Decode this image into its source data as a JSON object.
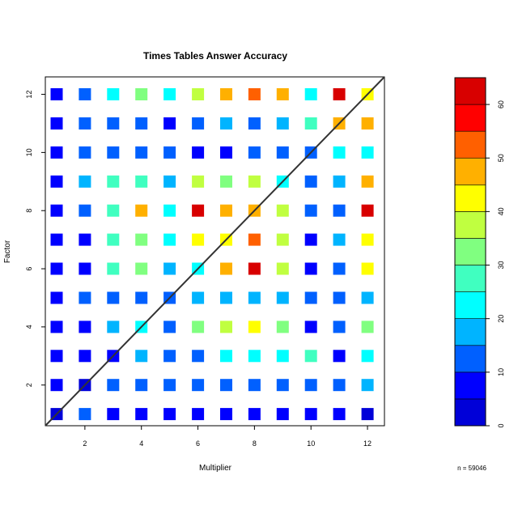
{
  "chart_data": {
    "type": "heatmap",
    "title": "Times Tables Answer Accuracy",
    "xlabel": "Multiplier",
    "ylabel": "Factor",
    "x": [
      1,
      2,
      3,
      4,
      5,
      6,
      7,
      8,
      9,
      10,
      11,
      12
    ],
    "y": [
      1,
      2,
      3,
      4,
      5,
      6,
      7,
      8,
      9,
      10,
      11,
      12
    ],
    "xlim": [
      0.6,
      12.6
    ],
    "ylim": [
      0.6,
      12.6
    ],
    "x_ticks": [
      2,
      4,
      6,
      8,
      10,
      12
    ],
    "y_ticks": [
      2,
      4,
      6,
      8,
      10,
      12
    ],
    "diagonal_line": true,
    "values_by_row_factor": [
      [
        3,
        12,
        5,
        5,
        5,
        5,
        5,
        5,
        5,
        5,
        5,
        3
      ],
      [
        5,
        2,
        11,
        11,
        11,
        11,
        11,
        11,
        11,
        11,
        11,
        16
      ],
      [
        5,
        5,
        5,
        16,
        11,
        11,
        21,
        21,
        21,
        27,
        5,
        21
      ],
      [
        5,
        5,
        16,
        21,
        11,
        32,
        37,
        44,
        32,
        5,
        11,
        32
      ],
      [
        5,
        11,
        11,
        11,
        11,
        16,
        16,
        16,
        16,
        11,
        11,
        16
      ],
      [
        5,
        5,
        27,
        32,
        16,
        21,
        48,
        62,
        37,
        5,
        11,
        42
      ],
      [
        5,
        5,
        27,
        32,
        21,
        42,
        42,
        53,
        37,
        5,
        16,
        42
      ],
      [
        5,
        11,
        27,
        48,
        21,
        62,
        48,
        48,
        37,
        11,
        11,
        65
      ],
      [
        5,
        16,
        27,
        27,
        16,
        37,
        32,
        37,
        21,
        11,
        16,
        48
      ],
      [
        5,
        11,
        11,
        11,
        11,
        5,
        5,
        11,
        11,
        11,
        21,
        21
      ],
      [
        5,
        11,
        11,
        11,
        5,
        11,
        16,
        11,
        16,
        27,
        48,
        48
      ],
      [
        5,
        11,
        21,
        32,
        21,
        37,
        48,
        53,
        48,
        21,
        62,
        42
      ]
    ],
    "color_scale": {
      "breaks": [
        0,
        5,
        10,
        15,
        20,
        25,
        30,
        35,
        40,
        45,
        50,
        55,
        60,
        65
      ],
      "colors": [
        "#0000d8",
        "#0000ff",
        "#0060ff",
        "#00b4ff",
        "#00ffff",
        "#40ffc0",
        "#80ff80",
        "#c0ff40",
        "#ffff00",
        "#ffb000",
        "#ff6000",
        "#ff0000",
        "#d80000"
      ],
      "ticks": [
        0,
        10,
        20,
        30,
        40,
        50,
        60
      ]
    },
    "n_label": "n = 59046"
  }
}
